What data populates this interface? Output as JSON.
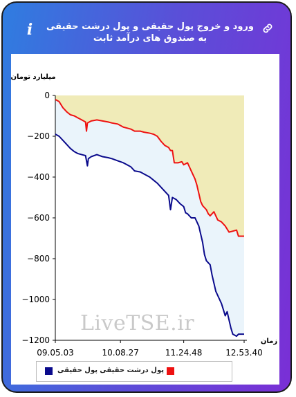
{
  "header": {
    "title": "ورود و خروج پول حقیقی و پول درشت حقیقی به صندوق های درآمد ثابت",
    "info_icon": "info-icon",
    "link_icon": "link-icon"
  },
  "watermark": "LiveTSE.ir",
  "colors": {
    "gradient_start": "#2f7de0",
    "gradient_end": "#7a2fd6",
    "real_money": "#0a0a8c",
    "big_real_money": "#ee1111",
    "band_fill": "#eaf4fb",
    "top_fill": "#f0ebb8"
  },
  "chart_data": {
    "type": "line",
    "ylabel": "میلیارد تومان",
    "xlabel": "زمان",
    "ylim": [
      -1200,
      0
    ],
    "yticks": [
      "0",
      "−200",
      "−400",
      "−600",
      "−800",
      "−1000",
      "−1200"
    ],
    "ytick_values": [
      0,
      -200,
      -400,
      -600,
      -800,
      -1000,
      -1200
    ],
    "xticks": [
      "09.05.03",
      "10.08.27",
      "11.24.48",
      "12.53.40"
    ],
    "xtick_positions": [
      0,
      0.345,
      0.68,
      1.0
    ],
    "series": [
      {
        "name": "پول حقیقی",
        "color": "#0a0a8c",
        "points": [
          [
            0.0,
            -190
          ],
          [
            0.02,
            -200
          ],
          [
            0.05,
            -230
          ],
          [
            0.08,
            -260
          ],
          [
            0.1,
            -275
          ],
          [
            0.12,
            -285
          ],
          [
            0.14,
            -290
          ],
          [
            0.16,
            -295
          ],
          [
            0.17,
            -345
          ],
          [
            0.175,
            -310
          ],
          [
            0.19,
            -300
          ],
          [
            0.22,
            -290
          ],
          [
            0.25,
            -300
          ],
          [
            0.28,
            -305
          ],
          [
            0.3,
            -310
          ],
          [
            0.33,
            -320
          ],
          [
            0.36,
            -330
          ],
          [
            0.38,
            -340
          ],
          [
            0.4,
            -350
          ],
          [
            0.42,
            -370
          ],
          [
            0.45,
            -375
          ],
          [
            0.47,
            -385
          ],
          [
            0.5,
            -400
          ],
          [
            0.52,
            -415
          ],
          [
            0.54,
            -430
          ],
          [
            0.55,
            -440
          ],
          [
            0.58,
            -470
          ],
          [
            0.6,
            -490
          ],
          [
            0.61,
            -560
          ],
          [
            0.62,
            -500
          ],
          [
            0.64,
            -510
          ],
          [
            0.66,
            -530
          ],
          [
            0.68,
            -545
          ],
          [
            0.69,
            -575
          ],
          [
            0.7,
            -580
          ],
          [
            0.72,
            -600
          ],
          [
            0.74,
            -600
          ],
          [
            0.75,
            -620
          ],
          [
            0.76,
            -640
          ],
          [
            0.77,
            -680
          ],
          [
            0.78,
            -720
          ],
          [
            0.79,
            -780
          ],
          [
            0.8,
            -810
          ],
          [
            0.82,
            -830
          ],
          [
            0.83,
            -880
          ],
          [
            0.84,
            -920
          ],
          [
            0.85,
            -960
          ],
          [
            0.87,
            -1000
          ],
          [
            0.88,
            -1020
          ],
          [
            0.9,
            -1080
          ],
          [
            0.91,
            -1060
          ],
          [
            0.92,
            -1100
          ],
          [
            0.93,
            -1140
          ],
          [
            0.94,
            -1170
          ],
          [
            0.96,
            -1180
          ],
          [
            0.97,
            -1170
          ],
          [
            1.0,
            -1170
          ]
        ]
      },
      {
        "name": "پول درشت حقیقی",
        "color": "#ee1111",
        "points": [
          [
            0.0,
            -20
          ],
          [
            0.02,
            -30
          ],
          [
            0.04,
            -60
          ],
          [
            0.06,
            -80
          ],
          [
            0.08,
            -95
          ],
          [
            0.1,
            -100
          ],
          [
            0.12,
            -110
          ],
          [
            0.14,
            -120
          ],
          [
            0.16,
            -130
          ],
          [
            0.165,
            -175
          ],
          [
            0.17,
            -135
          ],
          [
            0.19,
            -125
          ],
          [
            0.22,
            -120
          ],
          [
            0.25,
            -125
          ],
          [
            0.28,
            -130
          ],
          [
            0.3,
            -135
          ],
          [
            0.33,
            -140
          ],
          [
            0.36,
            -155
          ],
          [
            0.38,
            -160
          ],
          [
            0.4,
            -165
          ],
          [
            0.42,
            -175
          ],
          [
            0.45,
            -175
          ],
          [
            0.47,
            -180
          ],
          [
            0.5,
            -185
          ],
          [
            0.52,
            -190
          ],
          [
            0.54,
            -200
          ],
          [
            0.56,
            -225
          ],
          [
            0.58,
            -245
          ],
          [
            0.6,
            -255
          ],
          [
            0.61,
            -270
          ],
          [
            0.62,
            -270
          ],
          [
            0.63,
            -330
          ],
          [
            0.65,
            -330
          ],
          [
            0.67,
            -325
          ],
          [
            0.68,
            -340
          ],
          [
            0.7,
            -330
          ],
          [
            0.71,
            -350
          ],
          [
            0.72,
            -370
          ],
          [
            0.73,
            -390
          ],
          [
            0.74,
            -410
          ],
          [
            0.75,
            -440
          ],
          [
            0.76,
            -480
          ],
          [
            0.77,
            -520
          ],
          [
            0.78,
            -540
          ],
          [
            0.79,
            -550
          ],
          [
            0.8,
            -560
          ],
          [
            0.81,
            -580
          ],
          [
            0.82,
            -590
          ],
          [
            0.83,
            -580
          ],
          [
            0.84,
            -570
          ],
          [
            0.85,
            -590
          ],
          [
            0.86,
            -610
          ],
          [
            0.88,
            -620
          ],
          [
            0.9,
            -640
          ],
          [
            0.92,
            -670
          ],
          [
            0.94,
            -665
          ],
          [
            0.96,
            -660
          ],
          [
            0.97,
            -690
          ],
          [
            1.0,
            -690
          ]
        ]
      }
    ],
    "legend_position": "bottom-center",
    "grid": false
  }
}
